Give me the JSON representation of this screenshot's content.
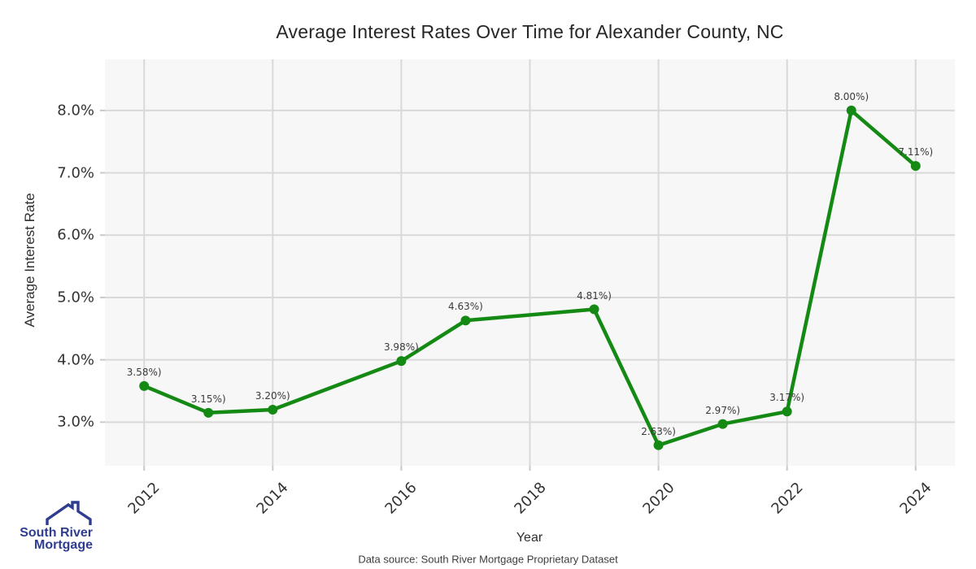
{
  "chart_data": {
    "type": "line",
    "title": "Average Interest Rates Over Time for Alexander County, NC",
    "xlabel": "Year",
    "ylabel": "Average Interest Rate",
    "x": [
      2012,
      2013,
      2014,
      2016,
      2017,
      2019,
      2020,
      2021,
      2022,
      2023,
      2024
    ],
    "y": [
      3.58,
      3.15,
      3.2,
      3.98,
      4.63,
      4.81,
      2.63,
      2.97,
      3.17,
      8.0,
      7.11
    ],
    "point_labels": [
      "3.58%)",
      "3.15%)",
      "3.20%)",
      "3.98%)",
      "4.63%)",
      "4.81%)",
      "2.63%)",
      "2.97%)",
      "3.17%)",
      "8.00%)",
      "7.11%)"
    ],
    "x_ticks": [
      2012,
      2014,
      2016,
      2018,
      2020,
      2022,
      2024
    ],
    "x_tick_labels": [
      "2012",
      "2014",
      "2016",
      "2018",
      "2020",
      "2022",
      "2024"
    ],
    "y_tick_values": [
      3,
      4,
      5,
      6,
      7,
      8
    ],
    "y_tick_labels": [
      "3.0%",
      "4.0%",
      "5.0%",
      "6.0%",
      "7.0%",
      "8.0%"
    ],
    "xlim": [
      2011.39,
      2024.61
    ],
    "ylim": [
      2.3,
      8.82
    ],
    "grid": true,
    "legend": "none",
    "line_color": "#148a14",
    "marker_color": "#148a14",
    "plot_bg": "#f7f7f7",
    "grid_color": "#d9d9d9",
    "tick_color": "#c9c9c9"
  },
  "footer": {
    "data_source": "Data source: South River Mortgage Proprietary Dataset"
  },
  "logo": {
    "line1": "South River",
    "line2": "Mortgage",
    "color": "#2e3d8f"
  }
}
